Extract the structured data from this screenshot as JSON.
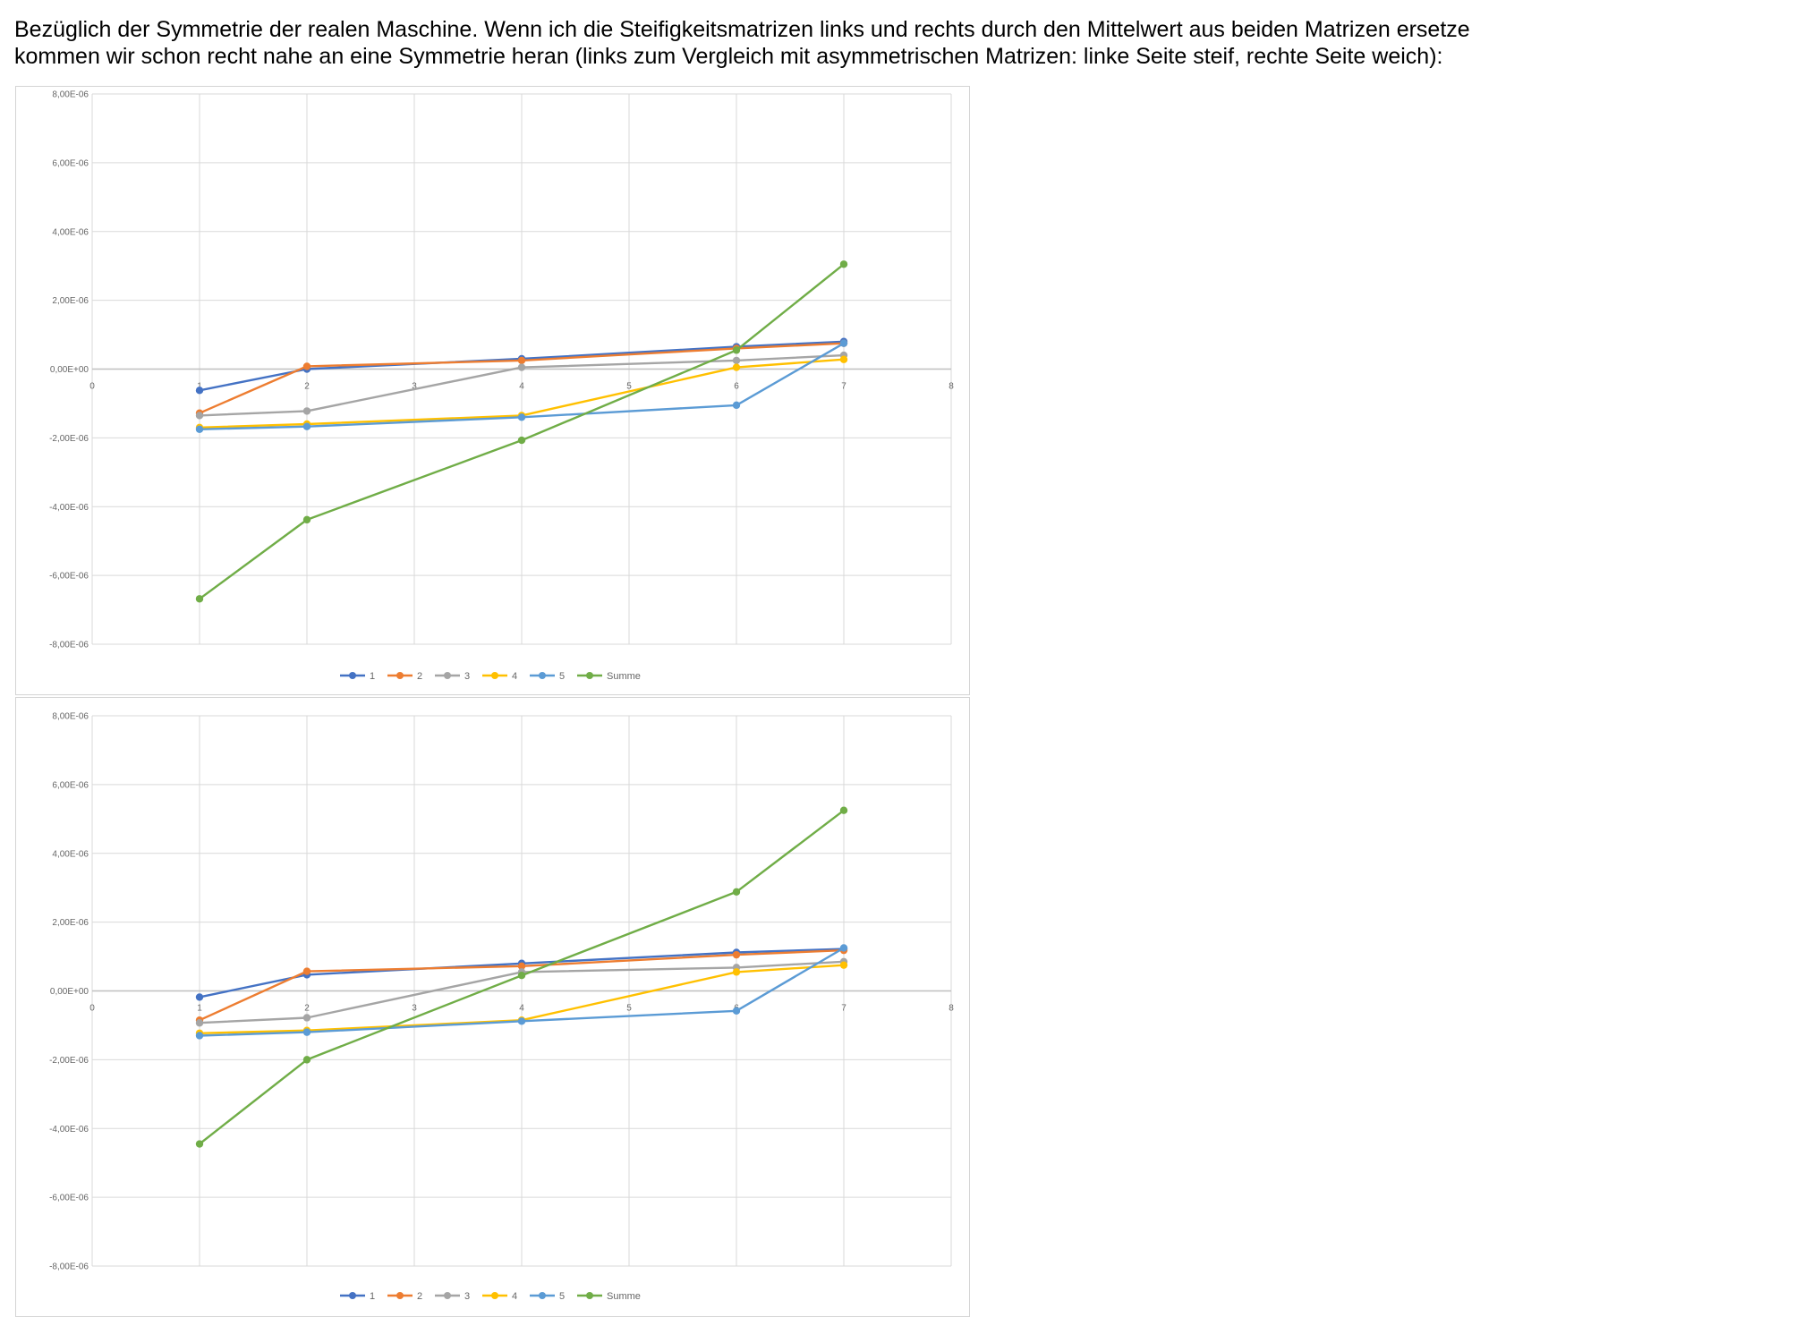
{
  "intro": {
    "line1": "Bezüglich der Symmetrie der realen Maschine. Wenn ich die Steifigkeitsmatrizen links und rechts durch den Mittelwert aus beiden Matrizen ersetze",
    "line2": "kommen wir schon recht nahe an eine Symmetrie heran (links zum Vergleich mit asymmetrischen Matrizen: linke Seite steif, rechte Seite weich):"
  },
  "colors": {
    "s1": "#4472C4",
    "s2": "#ED7D31",
    "s3": "#A5A5A5",
    "s4": "#FFC000",
    "s5": "#5B9BD5",
    "summe": "#70AD47",
    "grid": "#d9d9d9",
    "axis": "#bfbfbf"
  },
  "chart_data": [
    {
      "type": "line",
      "title": "",
      "xlabel": "",
      "ylabel": "",
      "xlim": [
        0,
        8
      ],
      "ylim": [
        -8e-06,
        8e-06
      ],
      "x_ticks": [
        "0",
        "1",
        "2",
        "3",
        "4",
        "5",
        "6",
        "7",
        "8"
      ],
      "y_ticks": [
        "8,00E-06",
        "6,00E-06",
        "4,00E-06",
        "2,00E-06",
        "0,00E+00",
        "-2,00E-06",
        "-4,00E-06",
        "-6,00E-06",
        "-8,00E-06"
      ],
      "grid": true,
      "legend": "bottom",
      "x": [
        1,
        2,
        4,
        6,
        7
      ],
      "series": [
        {
          "name": "1",
          "values": [
            -6.2e-07,
            0.0,
            3e-07,
            6.5e-07,
            8e-07
          ]
        },
        {
          "name": "2",
          "values": [
            -1.28e-06,
            8e-08,
            2.5e-07,
            6e-07,
            7.5e-07
          ]
        },
        {
          "name": "3",
          "values": [
            -1.35e-06,
            -1.22e-06,
            5e-08,
            2.5e-07,
            4e-07
          ]
        },
        {
          "name": "4",
          "values": [
            -1.7e-06,
            -1.6e-06,
            -1.35e-06,
            5e-08,
            2.8e-07
          ]
        },
        {
          "name": "5",
          "values": [
            -1.75e-06,
            -1.67e-06,
            -1.4e-06,
            -1.05e-06,
            7.5e-07
          ]
        },
        {
          "name": "Summe",
          "values": [
            -6.68e-06,
            -4.38e-06,
            -2.07e-06,
            5.5e-07,
            3.05e-06
          ]
        }
      ]
    },
    {
      "type": "line",
      "title": "",
      "xlabel": "",
      "ylabel": "",
      "xlim": [
        0,
        8
      ],
      "ylim": [
        -8e-06,
        8e-06
      ],
      "x_ticks": [
        "0",
        "1",
        "2",
        "3",
        "4",
        "5",
        "6",
        "7",
        "8"
      ],
      "y_ticks": [
        "8,00E-06",
        "6,00E-06",
        "4,00E-06",
        "2,00E-06",
        "0,00E+00",
        "-2,00E-06",
        "-4,00E-06",
        "-6,00E-06",
        "-8,00E-06"
      ],
      "grid": true,
      "legend": "bottom",
      "x": [
        1,
        2,
        4,
        6,
        7
      ],
      "series": [
        {
          "name": "1",
          "values": [
            -1.8e-07,
            4.7e-07,
            8e-07,
            1.12e-06,
            1.22e-06
          ]
        },
        {
          "name": "2",
          "values": [
            -8.5e-07,
            5.7e-07,
            7.2e-07,
            1.05e-06,
            1.18e-06
          ]
        },
        {
          "name": "3",
          "values": [
            -9.3e-07,
            -7.8e-07,
            5.5e-07,
            6.8e-07,
            8.5e-07
          ]
        },
        {
          "name": "4",
          "values": [
            -1.23e-06,
            -1.15e-06,
            -8.5e-07,
            5.5e-07,
            7.5e-07
          ]
        },
        {
          "name": "5",
          "values": [
            -1.3e-06,
            -1.2e-06,
            -8.8e-07,
            -5.8e-07,
            1.25e-06
          ]
        },
        {
          "name": "Summe",
          "values": [
            -4.45e-06,
            -2e-06,
            4.5e-07,
            2.88e-06,
            5.25e-06
          ]
        }
      ]
    }
  ]
}
